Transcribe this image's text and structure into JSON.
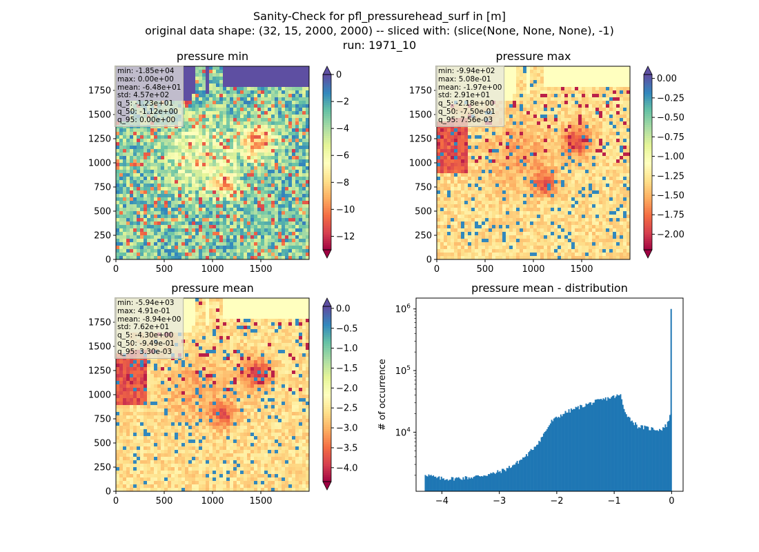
{
  "figure": {
    "title_lines": [
      "Sanity-Check for pfl_pressurehead_surf in [m]",
      "original data shape: (32, 15, 2000, 2000) -- sliced with: (slice(None, None, None), -1)",
      "run: 1971_10"
    ]
  },
  "colormap": "Spectral",
  "panels": [
    {
      "title": "pressure min",
      "stats": [
        "min: -1.85e+04",
        "max: 0.00e+00",
        "mean: -6.48e+01",
        "std: 4.57e+02",
        "q_5: -1.23e+01",
        "q_50: -1.12e+00",
        "q_95: 0.00e+00"
      ],
      "xticks": [
        "0",
        "500",
        "1000",
        "1500"
      ],
      "yticks": [
        "0",
        "250",
        "500",
        "750",
        "1000",
        "1250",
        "1500",
        "1750"
      ],
      "colorbar": {
        "vmin": -13,
        "vmax": 0,
        "ticks": [
          0,
          -2,
          -4,
          -6,
          -8,
          -10,
          -12
        ],
        "tick_labels": [
          "0",
          "−2",
          "−4",
          "−6",
          "−8",
          "−10",
          "−12"
        ]
      }
    },
    {
      "title": "pressure max",
      "stats": [
        "min: -9.94e+02",
        "max: 5.08e-01",
        "mean: -1.97e+00",
        "std: 2.91e+01",
        "q_5: -2.18e+00",
        "q_50: -7.50e-01",
        "q_95: 7.56e-03"
      ],
      "xticks": [
        "0",
        "500",
        "1000",
        "1500"
      ],
      "yticks": [
        "0",
        "250",
        "500",
        "750",
        "1000",
        "1250",
        "1500",
        "1750"
      ],
      "colorbar": {
        "vmin": -2.2,
        "vmax": 0.05,
        "ticks": [
          0,
          -0.25,
          -0.5,
          -0.75,
          -1.0,
          -1.25,
          -1.5,
          -1.75,
          -2.0
        ],
        "tick_labels": [
          "0.00",
          "−0.25",
          "−0.50",
          "−0.75",
          "−1.00",
          "−1.25",
          "−1.50",
          "−1.75",
          "−2.00"
        ]
      }
    },
    {
      "title": "pressure mean",
      "stats": [
        "min: -5.94e+03",
        "max: 4.91e-01",
        "mean: -8.94e+00",
        "std: 7.62e+01",
        "q_5: -4.30e+00",
        "q_50: -9.49e-01",
        "q_95: 3.30e-03"
      ],
      "xticks": [
        "0",
        "500",
        "1000",
        "1500"
      ],
      "yticks": [
        "0",
        "250",
        "500",
        "750",
        "1000",
        "1250",
        "1500",
        "1750"
      ],
      "colorbar": {
        "vmin": -4.35,
        "vmax": 0.05,
        "ticks": [
          0,
          -0.5,
          -1.0,
          -1.5,
          -2.0,
          -2.5,
          -3.0,
          -3.5,
          -4.0
        ],
        "tick_labels": [
          "0.0",
          "−0.5",
          "−1.0",
          "−1.5",
          "−2.0",
          "−2.5",
          "−3.0",
          "−3.5",
          "−4.0"
        ]
      }
    }
  ],
  "chart_data": {
    "type": "bar",
    "title": "pressure mean - distribution",
    "xlabel": "",
    "ylabel": "# of occurrence",
    "yscale": "log",
    "xlim": [
      -4.45,
      0.2
    ],
    "ylim": [
      1100,
      1500000
    ],
    "xticks": [
      -4,
      -3,
      -2,
      -1,
      0
    ],
    "xtick_labels": [
      "−4",
      "−3",
      "−2",
      "−1",
      "0"
    ],
    "ytick_labels": [
      "10^4",
      "10^5",
      "10^6"
    ],
    "color": "#1f77b4",
    "bin_width": 0.02,
    "x": [
      -4.3,
      -4.1,
      -3.9,
      -3.7,
      -3.5,
      -3.3,
      -3.1,
      -2.9,
      -2.7,
      -2.5,
      -2.3,
      -2.1,
      -1.9,
      -1.7,
      -1.5,
      -1.3,
      -1.1,
      -0.9,
      -0.85,
      -0.75,
      -0.6,
      -0.4,
      -0.2,
      -0.1,
      -0.05,
      -0.02,
      0.0
    ],
    "y": [
      2100,
      1800,
      1750,
      1800,
      1850,
      2000,
      2150,
      2500,
      3200,
      4500,
      7500,
      15000,
      20000,
      24000,
      28000,
      32000,
      36000,
      40000,
      25000,
      17000,
      12500,
      11500,
      11000,
      13000,
      17000,
      20000,
      1000000
    ]
  }
}
